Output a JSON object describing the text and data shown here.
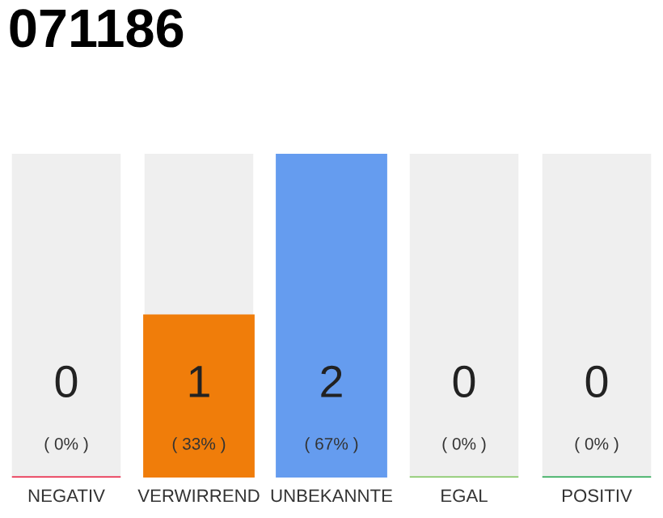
{
  "chart_data": {
    "type": "bar",
    "title": "071186",
    "categories": [
      "NEGATIV",
      "VERWIRREND",
      "UNBEKANNTE",
      "EGAL",
      "POSITIV"
    ],
    "values": [
      0,
      1,
      2,
      0,
      0
    ],
    "colors": [
      "#e8193c",
      "#f07d0a",
      "#659cef",
      "#7cc45a",
      "#1fa34a"
    ],
    "value_labels": [
      "0\n( 0% )",
      "1\n( 33% )",
      "2\n( 67% )",
      "0\n( 0% )",
      "0\n( 0% )"
    ],
    "grid": false,
    "legend": false
  }
}
